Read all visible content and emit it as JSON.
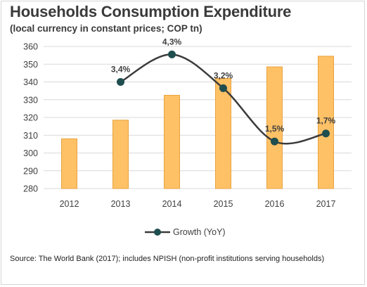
{
  "title": "Households Consumption Expenditure",
  "subtitle": "(local currency in constant prices; COP tn)",
  "source": "Source: The World Bank (2017); includes NPISH (non-profit institutions serving households)",
  "colors": {
    "bar": "#ffc166",
    "bar_border": "#e8a23e",
    "line": "#3b3b3b",
    "marker": "#1f4e4f",
    "grid": "#d9d9d9"
  },
  "chart_data": {
    "type": "bar",
    "categories": [
      "2012",
      "2013",
      "2014",
      "2015",
      "2016",
      "2017"
    ],
    "values": [
      308,
      318.5,
      332.5,
      342,
      348.5,
      354.5
    ],
    "ylim": [
      280,
      360
    ],
    "yticks": [
      280,
      290,
      300,
      310,
      320,
      330,
      340,
      350,
      360
    ],
    "grid": true,
    "legend_position": "bottom",
    "series": [
      {
        "name": "Growth (YoY)",
        "type": "line",
        "smooth": true,
        "x": [
          "2013",
          "2014",
          "2015",
          "2016",
          "2017"
        ],
        "values": [
          3.4,
          4.3,
          3.2,
          1.5,
          1.7
        ],
        "labels": [
          "3,4%",
          "4,3%",
          "3,2%",
          "1,5%",
          "1,7%"
        ],
        "plot_levels": [
          340,
          355.5,
          336.5,
          306.5,
          311
        ]
      }
    ]
  }
}
